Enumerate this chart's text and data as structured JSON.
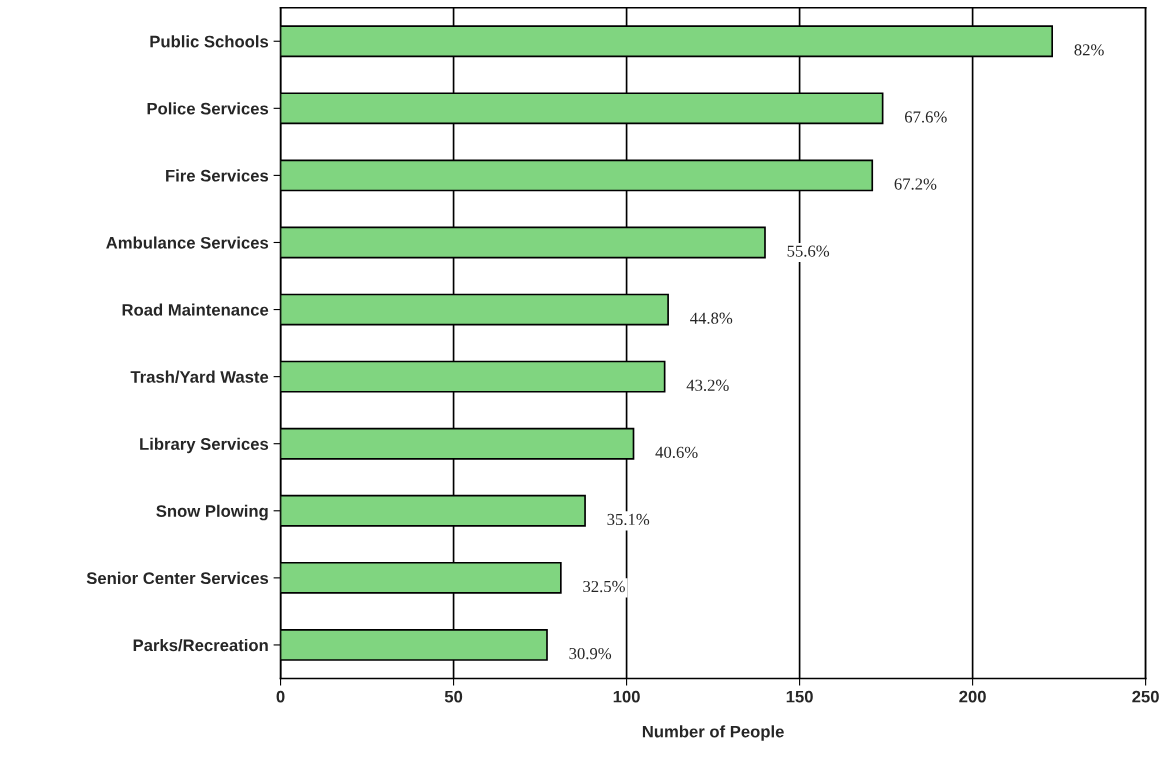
{
  "chart_data": {
    "type": "bar",
    "orientation": "horizontal",
    "xlabel": "Number of People",
    "categories": [
      "Public Schools",
      "Police Services",
      "Fire Services",
      "Ambulance Services",
      "Road Maintenance",
      "Trash/Yard Waste",
      "Library Services",
      "Snow Plowing",
      "Senior Center Services",
      "Parks/Recreation"
    ],
    "values": [
      223,
      174,
      171,
      140,
      112,
      111,
      102,
      88,
      81,
      77
    ],
    "annotations": [
      {
        "text": "82%",
        "x": 223,
        "y": "Public Schools"
      },
      {
        "text": "67.6%",
        "x": 174,
        "y": "Police Services"
      },
      {
        "text": "67.2%",
        "x": 171,
        "y": "Fire Services"
      },
      {
        "text": "55.6%",
        "x": 140,
        "y": "Ambulance Services"
      },
      {
        "text": "44.8%",
        "x": 112,
        "y": "Road Maintenance"
      },
      {
        "text": "43.2%",
        "x": 111,
        "y": "Trash/Yard Waste"
      },
      {
        "text": "40.6%",
        "x": 102,
        "y": "Library Services"
      },
      {
        "text": "35.1%",
        "x": 88,
        "y": "Snow Plowing"
      },
      {
        "text": "32.5%",
        "x": 81,
        "y": "Senior Center Services"
      },
      {
        "text": "30.9%",
        "x": 77,
        "y": "Parks/Recreation"
      }
    ],
    "color": "#80d580",
    "xlim": [
      0,
      250
    ],
    "xticks": [
      0,
      50,
      100,
      150,
      200,
      250
    ],
    "grid": "x",
    "legend": false
  }
}
